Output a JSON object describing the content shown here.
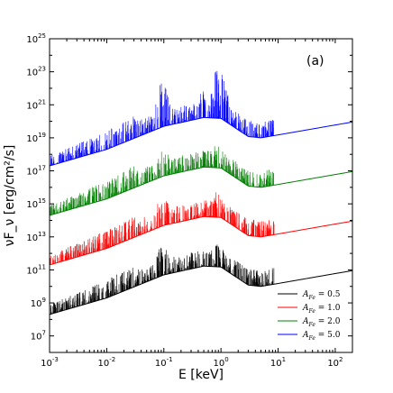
{
  "chart_data": {
    "type": "line",
    "panel_label": "(a)",
    "xlabel": "E [keV]",
    "ylabel": "νF_ν [erg/cm²/s]",
    "xscale": "log",
    "yscale": "log",
    "xlim": [
      0.001,
      200
    ],
    "ylim": [
      1000000.0,
      1e+25
    ],
    "x_ticks": [
      {
        "base": "10",
        "exp": "-3"
      },
      {
        "base": "10",
        "exp": "-2"
      },
      {
        "base": "10",
        "exp": "-1"
      },
      {
        "base": "10",
        "exp": "0"
      },
      {
        "base": "10",
        "exp": "1"
      },
      {
        "base": "10",
        "exp": "2"
      }
    ],
    "y_ticks": [
      {
        "base": "10",
        "exp": "7"
      },
      {
        "base": "10",
        "exp": "9"
      },
      {
        "base": "10",
        "exp": "11"
      },
      {
        "base": "10",
        "exp": "13"
      },
      {
        "base": "10",
        "exp": "15"
      },
      {
        "base": "10",
        "exp": "17"
      },
      {
        "base": "10",
        "exp": "19"
      },
      {
        "base": "10",
        "exp": "21"
      },
      {
        "base": "10",
        "exp": "23"
      },
      {
        "base": "10",
        "exp": "25"
      }
    ],
    "legend_position": "lower-right",
    "series": [
      {
        "name": "A_Fe = 0.5",
        "name_main": "A",
        "name_sub": "Fe",
        "name_rest": " = 0.5",
        "color": "#000000",
        "log_offset": 0,
        "continuum": [
          [
            0.001,
            200000000.0
          ],
          [
            0.01,
            2000000000.0
          ],
          [
            0.1,
            50000000000.0
          ],
          [
            0.5,
            170000000000.0
          ],
          [
            1,
            150000000000.0
          ],
          [
            3,
            12000000000.0
          ],
          [
            5,
            10000000000.0
          ],
          [
            10,
            15000000000.0
          ],
          [
            100,
            60000000000.0
          ],
          [
            200,
            90000000000.0
          ]
        ],
        "peaks": [
          [
            0.09,
            3000000000000.0
          ],
          [
            0.1,
            2000000000000.0
          ],
          [
            0.5,
            1500000000000.0
          ],
          [
            0.9,
            8000000000000.0
          ],
          [
            1.1,
            1500000000000.0
          ],
          [
            7,
            30000000000.0
          ]
        ]
      },
      {
        "name": "A_Fe = 1.0",
        "name_main": "A",
        "name_sub": "Fe",
        "name_rest": " = 1.0",
        "color": "#ff0000",
        "log_offset": 3,
        "continuum": [
          [
            0.001,
            200000000000.0
          ],
          [
            0.01,
            2000000000000.0
          ],
          [
            0.1,
            50000000000000.0
          ],
          [
            0.5,
            170000000000000.0
          ],
          [
            1,
            150000000000000.0
          ],
          [
            3,
            12000000000000.0
          ],
          [
            5,
            10000000000000.0
          ],
          [
            10,
            15000000000000.0
          ],
          [
            100,
            60000000000000.0
          ],
          [
            200,
            90000000000000.0
          ]
        ],
        "peaks": [
          [
            0.09,
            3000000000000000.0
          ],
          [
            0.1,
            2000000000000000.0
          ],
          [
            0.5,
            1500000000000000.0
          ],
          [
            0.9,
            8000000000000000.0
          ],
          [
            1.1,
            1500000000000000.0
          ],
          [
            7,
            30000000000000.0
          ]
        ]
      },
      {
        "name": "A_Fe = 2.0",
        "name_main": "A",
        "name_sub": "Fe",
        "name_rest": " = 2.0",
        "color": "#008000",
        "log_offset": 6,
        "continuum": [
          [
            0.001,
            200000000000000.0
          ],
          [
            0.01,
            2000000000000000.0
          ],
          [
            0.1,
            5e+16
          ],
          [
            0.5,
            1.7e+17
          ],
          [
            1,
            1.5e+17
          ],
          [
            3,
            1.2e+16
          ],
          [
            5,
            1e+16
          ],
          [
            10,
            1.5e+16
          ],
          [
            100,
            6e+16
          ],
          [
            200,
            9e+16
          ]
        ],
        "peaks": [
          [
            0.09,
            3e+18
          ],
          [
            0.1,
            2e+18
          ],
          [
            0.5,
            1.5e+18
          ],
          [
            0.9,
            8e+18
          ],
          [
            1.1,
            1.5e+18
          ],
          [
            7,
            3e+16
          ]
        ]
      },
      {
        "name": "A_Fe = 5.0",
        "name_main": "A",
        "name_sub": "Fe",
        "name_rest": " = 5.0",
        "color": "#0000ff",
        "log_offset": 9,
        "continuum": [
          [
            0.001,
            2e+17
          ],
          [
            0.01,
            2e+18
          ],
          [
            0.1,
            5e+19
          ],
          [
            0.5,
            1.7e+20
          ],
          [
            1,
            1.5e+20
          ],
          [
            3,
            1.2e+19
          ],
          [
            5,
            1e+19
          ],
          [
            10,
            1.5e+19
          ],
          [
            100,
            6e+19
          ],
          [
            200,
            9e+19
          ]
        ],
        "peaks": [
          [
            0.09,
            3e+22
          ],
          [
            0.1,
            2e+22
          ],
          [
            0.5,
            1.5e+22
          ],
          [
            0.9,
            3e+23
          ],
          [
            1.1,
            3e+22
          ],
          [
            7,
            3e+19
          ]
        ]
      }
    ]
  }
}
